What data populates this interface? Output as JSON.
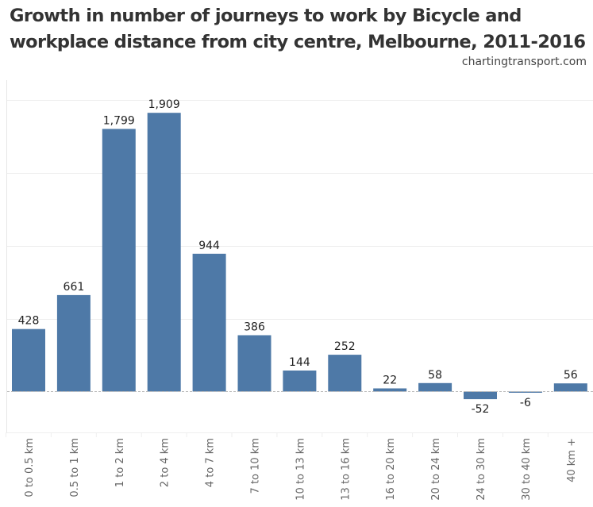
{
  "header": {
    "title_line1": "Growth in number of journeys to work by Bicycle and",
    "title_line2": "workplace distance from city centre, Melbourne, 2011-2016",
    "source": "chartingtransport.com"
  },
  "chart_data": {
    "type": "bar",
    "title": "Growth in number of journeys to work by Bicycle and workplace distance from city centre, Melbourne, 2011-2016",
    "xlabel": "",
    "ylabel": "",
    "categories": [
      "0 to 0.5 km",
      "0.5 to 1 km",
      "1 to 2 km",
      "2 to 4 km",
      "4 to 7 km",
      "7 to 10 km",
      "10 to 13 km",
      "13 to 16 km",
      "16 to 20 km",
      "20 to 24 km",
      "24 to 30 km",
      "30 to 40 km",
      "40 km +"
    ],
    "values": [
      428,
      661,
      1799,
      1909,
      944,
      386,
      144,
      252,
      22,
      58,
      -52,
      -6,
      56
    ],
    "data_labels": [
      "428",
      "661",
      "1,799",
      "1,909",
      "944",
      "386",
      "144",
      "252",
      "22",
      "58",
      "-52",
      "-6",
      "56"
    ],
    "ylim": [
      -275,
      2125
    ],
    "gridlines": [
      500,
      1000,
      1500,
      2000
    ],
    "grid": true,
    "y_tick_labels_shown": false,
    "bar_color": "#4e79a7"
  }
}
